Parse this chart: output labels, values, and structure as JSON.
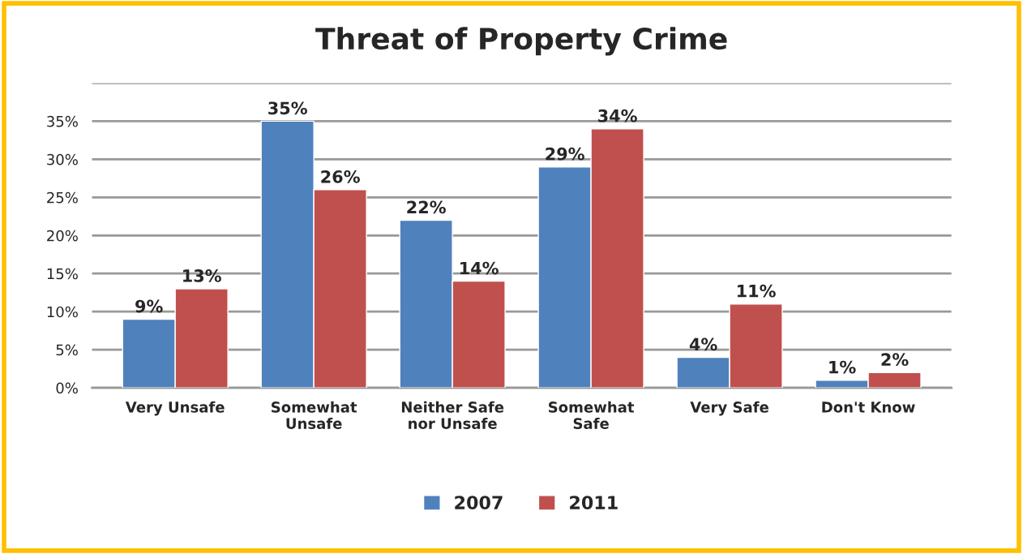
{
  "chart_data": {
    "type": "bar",
    "title": "Threat of Property Crime",
    "categories": [
      "Very Unsafe",
      "Somewhat\nUnsafe",
      "Neither Safe\nnor Unsafe",
      "Somewhat\nSafe",
      "Very Safe",
      "Don't Know"
    ],
    "series": [
      {
        "name": "2007",
        "color": "#4f81bd",
        "values": [
          9,
          35,
          22,
          29,
          4,
          1
        ],
        "value_labels": [
          "9%",
          "35%",
          "22%",
          "29%",
          "4%",
          "1%"
        ]
      },
      {
        "name": "2011",
        "color": "#c0504d",
        "values": [
          13,
          26,
          14,
          34,
          11,
          2
        ],
        "value_labels": [
          "13%",
          "26%",
          "14%",
          "34%",
          "11%",
          "2%"
        ]
      }
    ],
    "ylim": [
      0,
      40
    ],
    "yticks": [
      {
        "value": 0,
        "label": "0%"
      },
      {
        "value": 5,
        "label": "5%"
      },
      {
        "value": 10,
        "label": "10%"
      },
      {
        "value": 15,
        "label": "15%"
      },
      {
        "value": 20,
        "label": "20%"
      },
      {
        "value": 25,
        "label": "25%"
      },
      {
        "value": 30,
        "label": "30%"
      },
      {
        "value": 35,
        "label": "35%"
      },
      {
        "value": 40,
        "label": null
      }
    ],
    "grid": "y",
    "legend": "bottom"
  }
}
